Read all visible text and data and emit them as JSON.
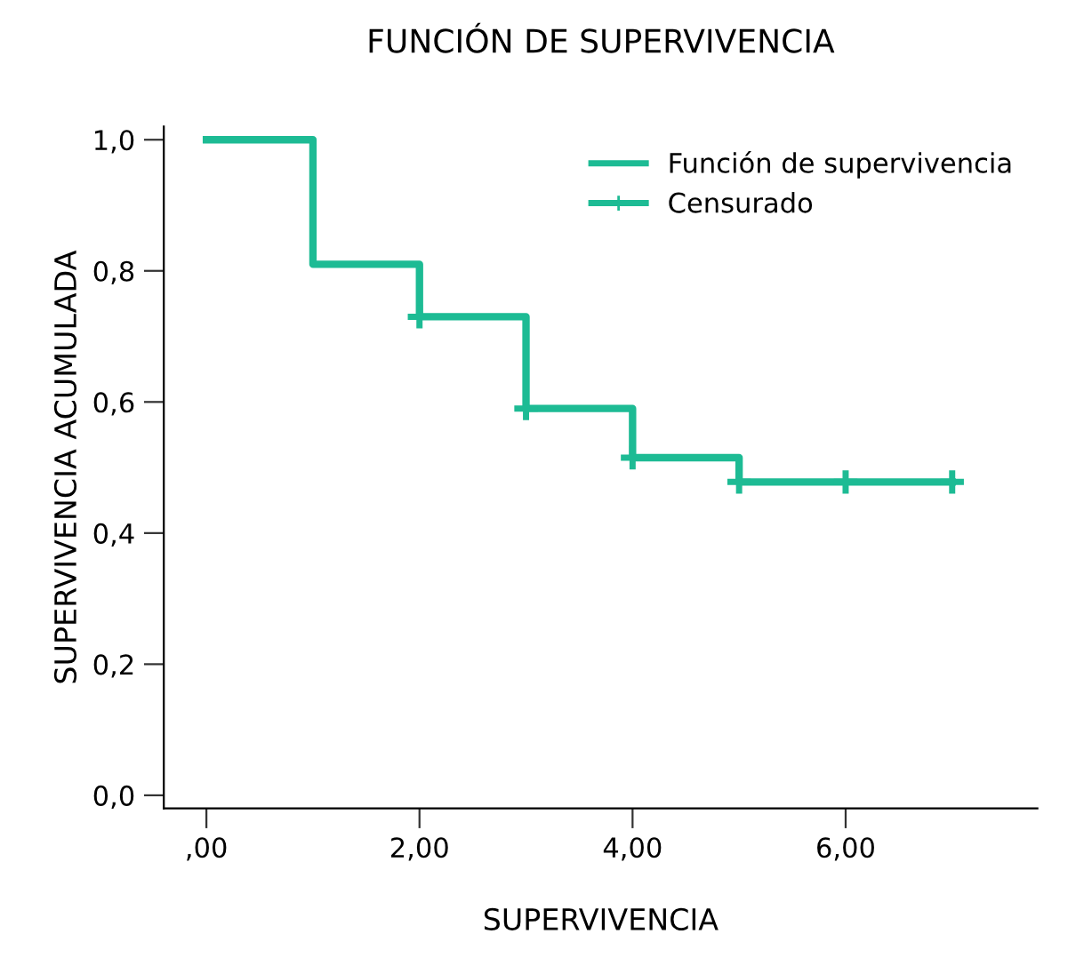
{
  "chart_data": {
    "type": "step",
    "title": "FUNCIÓN DE SUPERVIVENCIA",
    "xlabel": "SUPERVIVENCIA",
    "ylabel": "SUPERVIVENCIA ACUMULADA",
    "xlim": [
      -0.4,
      7.8
    ],
    "ylim": [
      -0.02,
      1.02
    ],
    "xticks": [
      {
        "value": 0,
        "label": ",00"
      },
      {
        "value": 2,
        "label": "2,00"
      },
      {
        "value": 4,
        "label": "4,00"
      },
      {
        "value": 6,
        "label": "6,00"
      }
    ],
    "yticks": [
      {
        "value": 0,
        "label": "0,0"
      },
      {
        "value": 0.2,
        "label": "0,2"
      },
      {
        "value": 0.4,
        "label": "0,4"
      },
      {
        "value": 0.6,
        "label": "0,6"
      },
      {
        "value": 0.8,
        "label": "0,8"
      },
      {
        "value": 1.0,
        "label": "1,0"
      }
    ],
    "grid": false,
    "legend": "top right",
    "series": [
      {
        "name": "Función de supervivencia",
        "color": "#1dbb94",
        "x": [
          0,
          1,
          2,
          3,
          4,
          5,
          7
        ],
        "values": [
          1.0,
          0.81,
          0.73,
          0.59,
          0.515,
          0.478,
          0.478
        ]
      },
      {
        "name": "Censurado",
        "type": "scatter",
        "marker": "cross",
        "color": "#1dbb94",
        "x": [
          2,
          3,
          4,
          5,
          6,
          7
        ],
        "values": [
          0.73,
          0.59,
          0.515,
          0.478,
          0.478,
          0.478
        ]
      }
    ]
  }
}
